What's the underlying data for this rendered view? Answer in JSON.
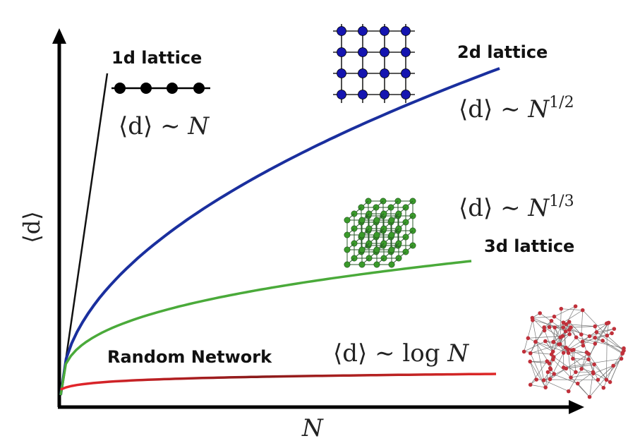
{
  "chart_data": {
    "type": "line",
    "xlabel": "N",
    "ylabel": "⟨d⟩",
    "grid": false,
    "legend": "none",
    "series": [
      {
        "name": "1d lattice",
        "formula": "⟨d⟩ ~ N",
        "exponent": 1.0,
        "color": "#111111"
      },
      {
        "name": "2d lattice",
        "formula": "⟨d⟩ ~ N^{1/2}",
        "exponent": 0.5,
        "color": "#1a2f9e"
      },
      {
        "name": "3d lattice",
        "formula": "⟨d⟩ ~ N^{1/3}",
        "exponent": 0.333,
        "color": "#4aaa3a"
      },
      {
        "name": "Random Network",
        "formula": "⟨d⟩ ~ log N",
        "exponent": null,
        "color": "#d8262c"
      }
    ],
    "labels": {
      "lattice_1d": "1d lattice",
      "lattice_2d": "2d lattice",
      "lattice_3d": "3d lattice",
      "random": "Random Network"
    },
    "formulas": {
      "f1d_prefix": "⟨d⟩ ∼ ",
      "f1d_var": "N",
      "f2d_prefix": "⟨d⟩ ∼ ",
      "f2d_var": "N",
      "f2d_exp": "1/2",
      "f3d_prefix": "⟨d⟩ ∼ ",
      "f3d_var": "N",
      "f3d_exp": "1/3",
      "frand_prefix": "⟨d⟩ ∼ log ",
      "frand_var": "N"
    },
    "node_colors": {
      "lattice_1d": "#000000",
      "lattice_2d": "#1515b0",
      "lattice_3d": "#3a9a2a",
      "random": "#c0303a"
    }
  }
}
